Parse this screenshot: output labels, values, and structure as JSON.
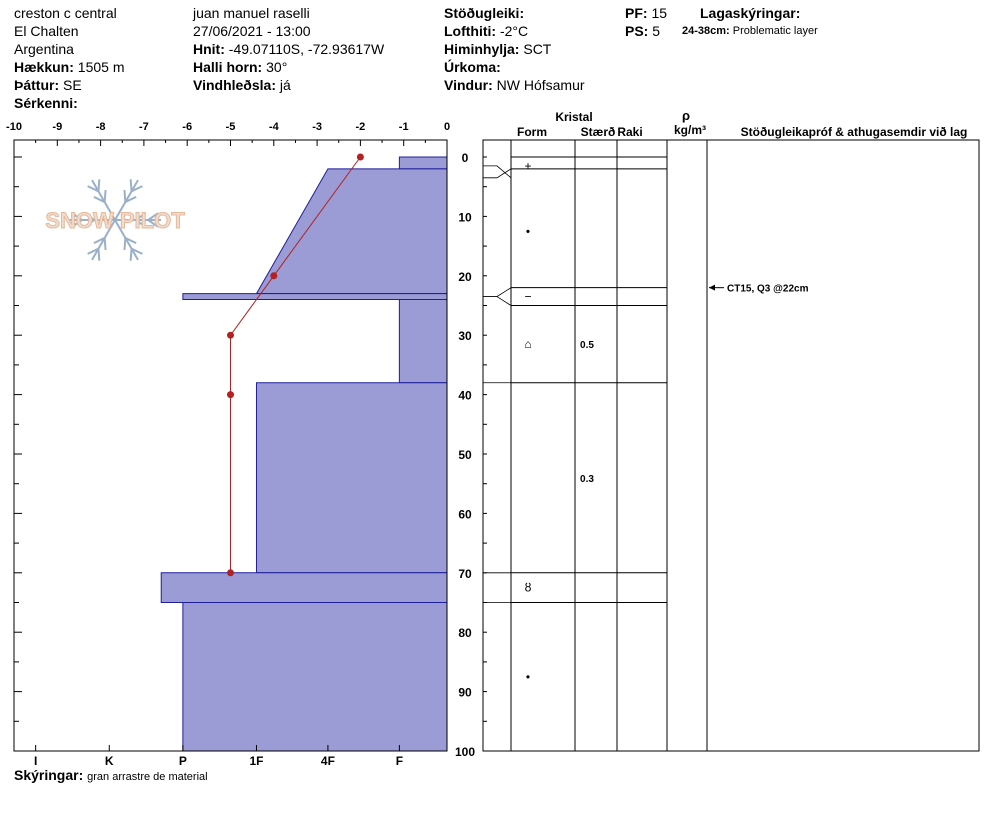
{
  "header": {
    "col1": {
      "location": "creston c central",
      "region": "El Chalten",
      "country": "Argentina",
      "elevation_label": "Hækkun:",
      "elevation_value": "1505 m",
      "aspect_label": "Þáttur:",
      "aspect_value": "SE",
      "features_label": "Sérkenni:",
      "features_value": ""
    },
    "col2": {
      "observer": "juan manuel raselli",
      "datetime": "27/06/2021 - 13:00",
      "coords_label": "Hnit:",
      "coords_value": "-49.07110S, -72.93617W",
      "slope_label": "Halli horn:",
      "slope_value": "30°",
      "wind_loading_label": "Vindhleðsla:",
      "wind_loading_value": "já"
    },
    "col3": {
      "stability_label": "Stöðugleiki:",
      "stability_value": "",
      "air_temp_label": "Lofthiti:",
      "air_temp_value": "-2°C",
      "sky_label": "Himinhylja:",
      "sky_value": "SCT",
      "precip_label": "Úrkoma:",
      "precip_value": "",
      "wind_label": "Vindur:",
      "wind_value": "NW Hófsamur"
    },
    "col4": {
      "pf_label": "PF:",
      "pf_value": "15",
      "ps_label": "PS:",
      "ps_value": "5"
    },
    "col5": {
      "layer_notes_label": "Lagaskýringar:",
      "layer_note_range": "24-38cm:",
      "layer_note_text": "Problematic layer"
    }
  },
  "footer": {
    "notes_label": "Skýringar:",
    "notes_text": "gran arrastre de material"
  },
  "logo": {
    "text": "SNOW PILOT"
  },
  "colors": {
    "hardness_fill": "#9b9bd6",
    "hardness_stroke": "#1f1f9c",
    "temp_line": "#b22222",
    "grid": "#000000"
  },
  "table_headers": {
    "crystal": "Kristal",
    "form": "Form",
    "size": "Stærð",
    "moisture": "Raki",
    "density_symbol": "ρ",
    "density_unit": "kg/m³",
    "tests": "Stöðugleikapróf & athugasemdir við lag"
  },
  "chart_data": {
    "type": "snow-profile",
    "depth_axis": {
      "min": 0,
      "max": 100,
      "ticks": [
        0,
        10,
        20,
        30,
        40,
        50,
        60,
        70,
        80,
        90,
        100
      ]
    },
    "temperature_axis": {
      "min": -10,
      "max": 0,
      "ticks": [
        -10,
        -9,
        -8,
        -7,
        -6,
        -5,
        -4,
        -3,
        -2,
        -1,
        0
      ]
    },
    "hardness_axis": {
      "labels": [
        "I",
        "K",
        "P",
        "1F",
        "4F",
        "F"
      ],
      "label_positions_temp": [
        -9.5,
        -7.8,
        -6.1,
        -4.4,
        -2.75,
        -1.1
      ]
    },
    "hardness_layers": [
      {
        "top": 0,
        "bottom": 2,
        "left_temp": -1.1
      },
      {
        "top": 2,
        "bottom": 23,
        "left_temp": -2.75,
        "left_temp_bottom": -4.4
      },
      {
        "top": 23,
        "bottom": 24,
        "left_temp": -6.1
      },
      {
        "top": 24,
        "bottom": 38,
        "left_temp": -1.1
      },
      {
        "top": 38,
        "bottom": 70,
        "left_temp": -4.4
      },
      {
        "top": 70,
        "bottom": 75,
        "left_temp": -6.6
      },
      {
        "top": 75,
        "bottom": 100,
        "left_temp": -6.1
      }
    ],
    "temperature_profile": [
      {
        "depth": 0,
        "temp": -2
      },
      {
        "depth": 20,
        "temp": -4
      },
      {
        "depth": 30,
        "temp": -5
      },
      {
        "depth": 40,
        "temp": -5
      },
      {
        "depth": 70,
        "temp": -5
      }
    ],
    "layers_table": [
      {
        "top": 0,
        "bottom": 2,
        "form": "",
        "size": ""
      },
      {
        "top": 2,
        "bottom": 22,
        "form": "+",
        "size": "",
        "form_depth": 1.5
      },
      {
        "top": 22,
        "bottom": 25,
        "form": "•",
        "size": "",
        "form_depth": 12.5
      },
      {
        "top": 25,
        "bottom": 38,
        "form": "−",
        "size": "",
        "form_depth": 23.5
      },
      {
        "top": 38,
        "bottom": 70,
        "form": "⌂",
        "size": "0.5",
        "form_depth": 31.5,
        "size_depth": 31.5
      },
      {
        "top": 70,
        "bottom": 75,
        "form": "",
        "size": "0.3",
        "size_depth": 54
      },
      {
        "top": 75,
        "bottom": 100,
        "form": "ȣ",
        "size": "",
        "form_depth": 72.5
      }
    ],
    "extra_form_symbols": [
      {
        "depth": 87.5,
        "symbol": "•"
      }
    ],
    "stability_tests": [
      {
        "depth": 22,
        "text": "CT15, Q3 @22cm"
      }
    ]
  }
}
